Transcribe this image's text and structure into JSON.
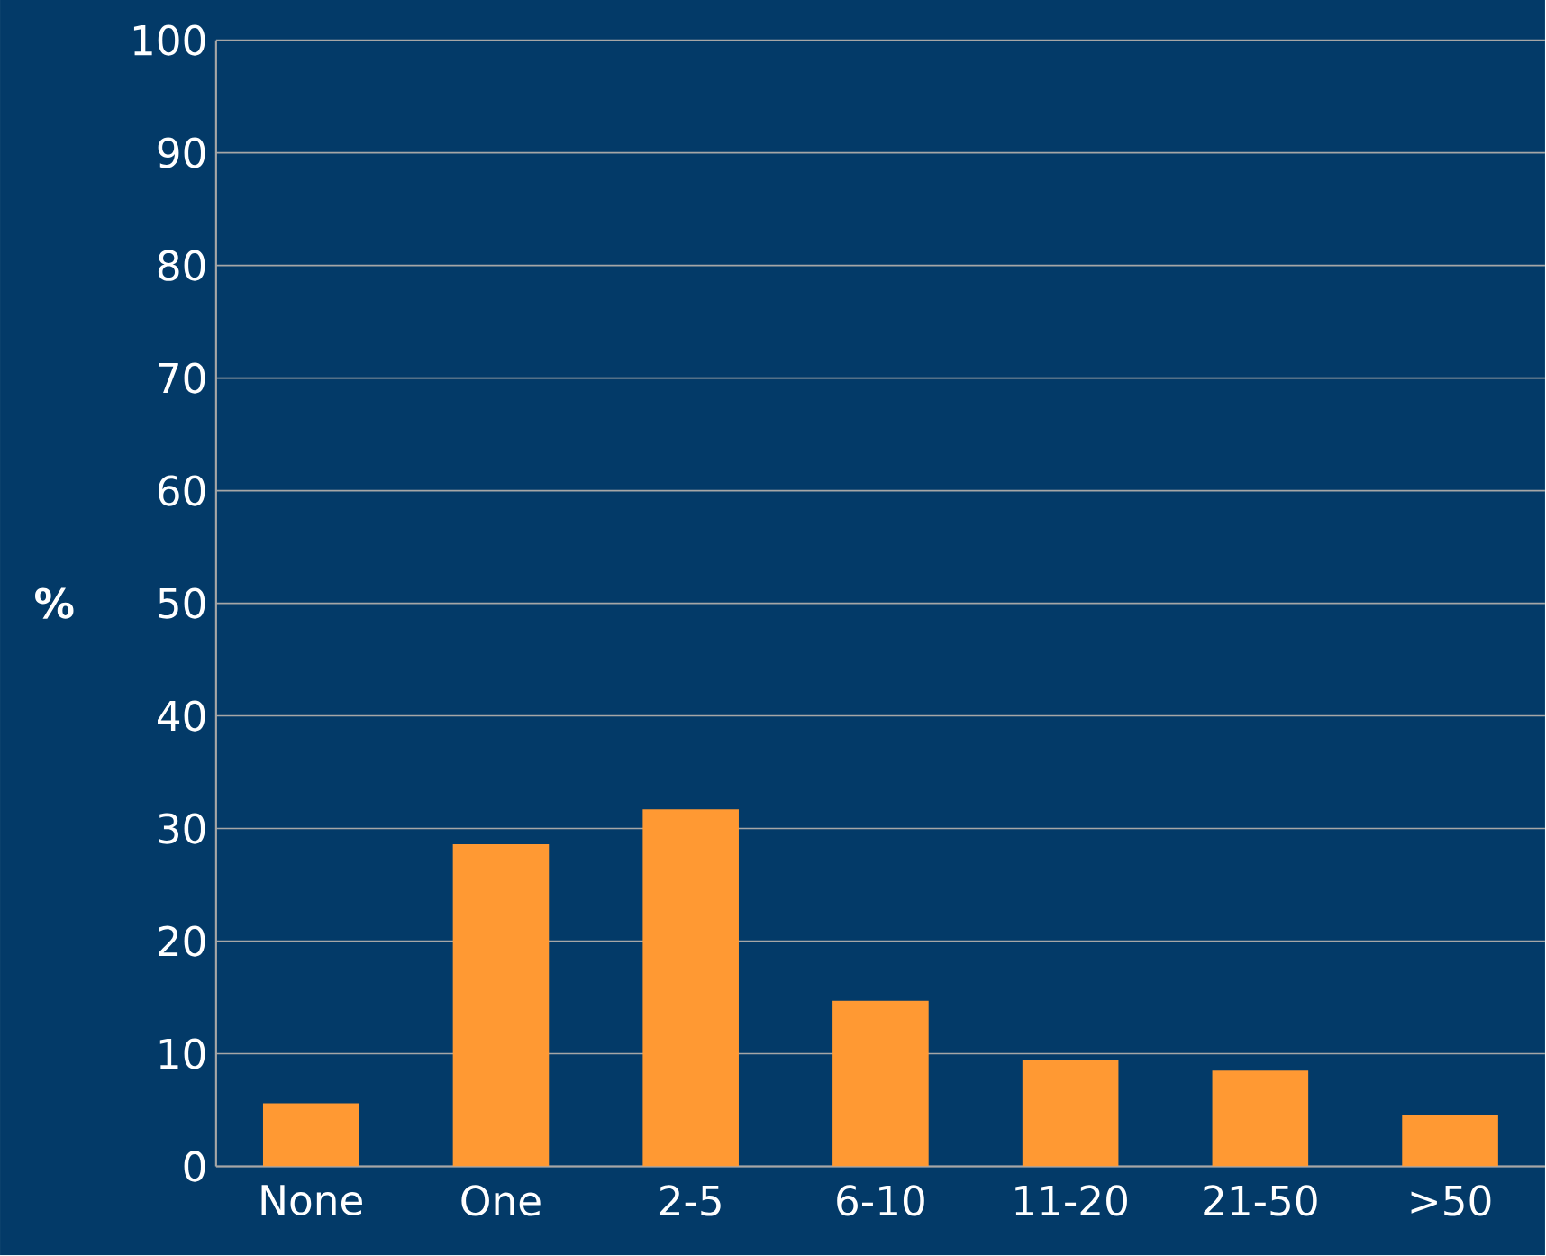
{
  "chart_data": {
    "type": "bar",
    "ylabel": "%",
    "categories": [
      "None",
      "One",
      "2-5",
      "6-10",
      "11-20",
      "21-50",
      ">50"
    ],
    "values": [
      5.6,
      28.6,
      31.7,
      14.7,
      9.4,
      8.5,
      4.6
    ],
    "color": "#ff9933",
    "ylim": [
      0,
      100
    ],
    "yticks": [
      0,
      10,
      20,
      30,
      40,
      50,
      60,
      70,
      80,
      90,
      100
    ],
    "grid": "y"
  }
}
